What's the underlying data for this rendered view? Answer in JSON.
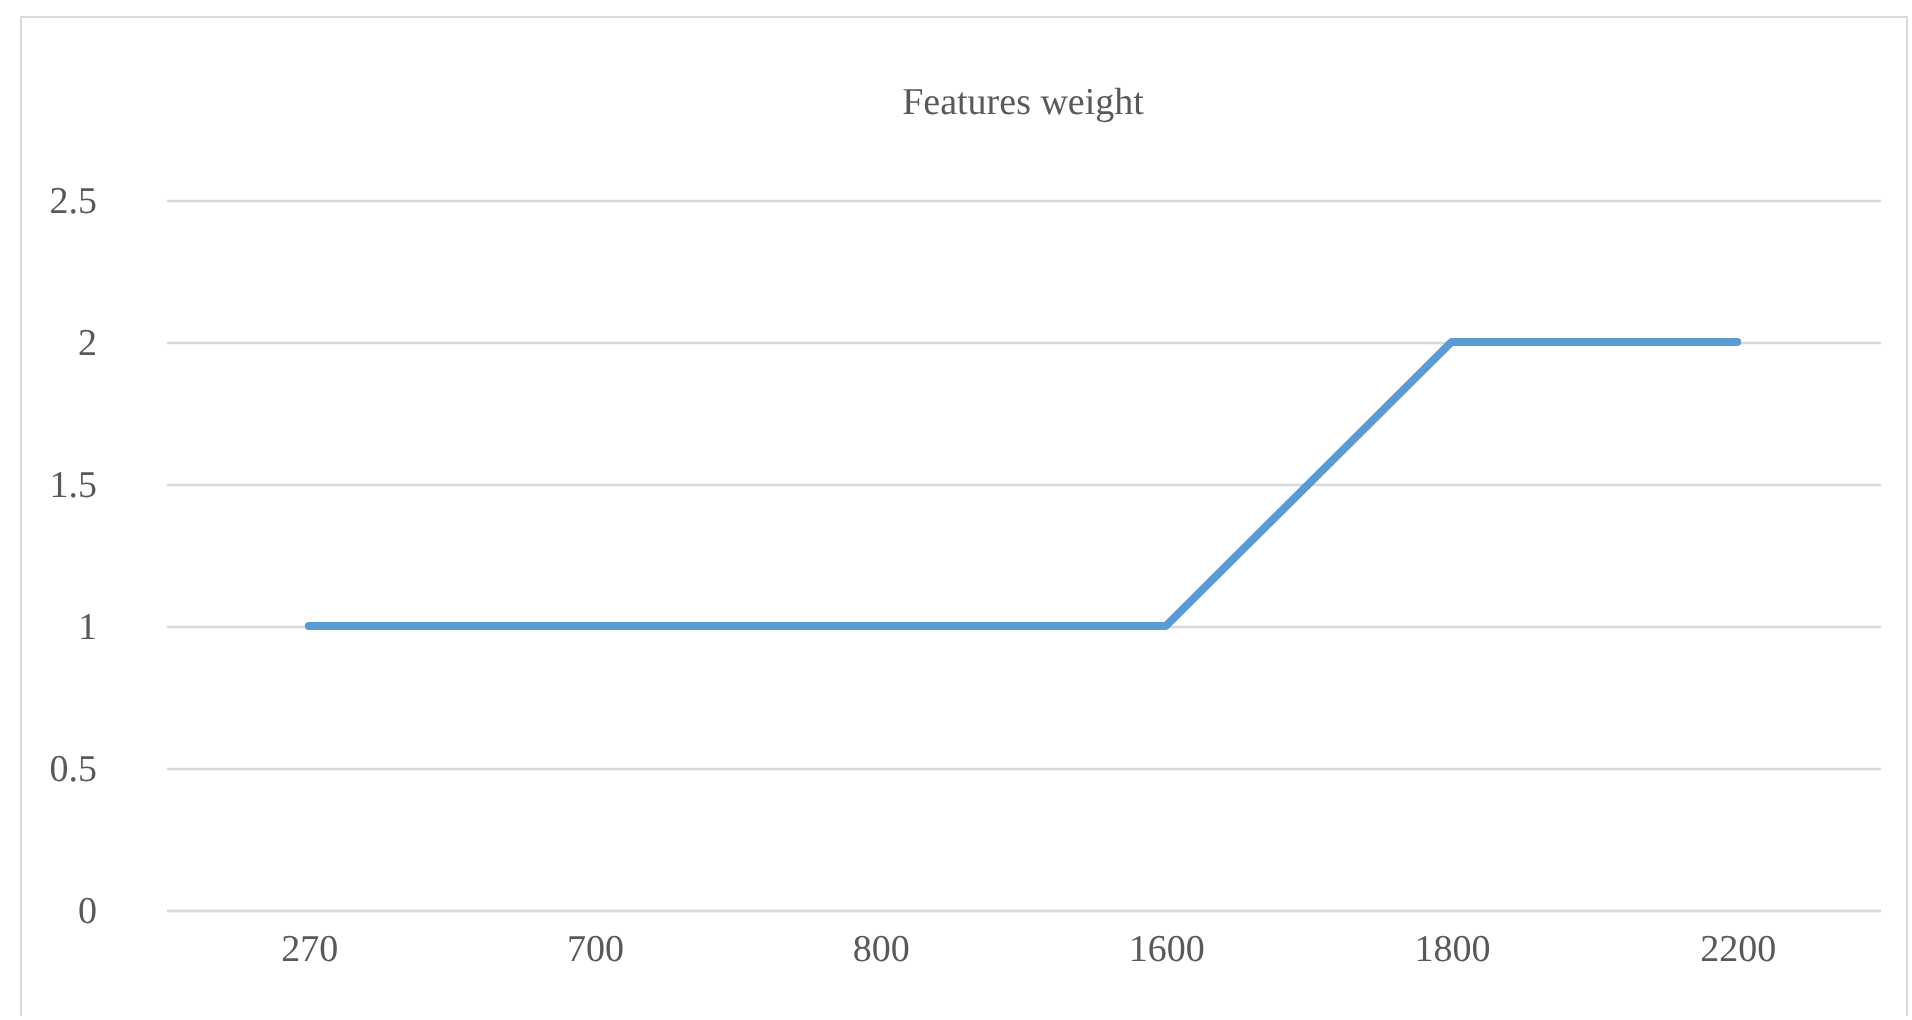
{
  "chart_data": {
    "type": "line",
    "title": "Features weight",
    "categories": [
      "270",
      "700",
      "800",
      "1600",
      "1800",
      "2200"
    ],
    "series": [
      {
        "color": "#5b9bd5",
        "values": [
          1,
          1,
          1,
          1,
          2,
          2
        ]
      }
    ],
    "ylim": [
      0,
      2.5
    ],
    "yticks": [
      0,
      0.5,
      1,
      1.5,
      2,
      2.5
    ],
    "grid": "y",
    "legend": false,
    "marker": "none",
    "line_style": "solid"
  }
}
